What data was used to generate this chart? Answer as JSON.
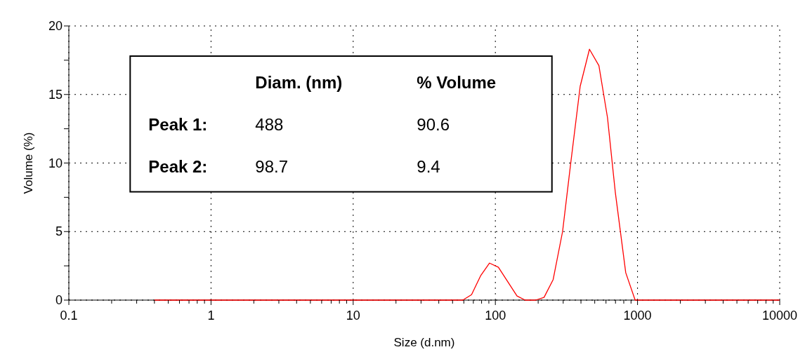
{
  "chart_data": {
    "type": "line",
    "xlabel": "Size (d.nm)",
    "ylabel": "Volume (%)",
    "log": "x",
    "xlim": [
      0.1,
      10000
    ],
    "ylim": [
      0,
      20
    ],
    "xticks": [
      {
        "value": 0.1,
        "label": "0.1"
      },
      {
        "value": 0.2,
        "label": null
      },
      {
        "value": 0.3,
        "label": null
      },
      {
        "value": 0.4,
        "label": null
      },
      {
        "value": 0.5,
        "label": null
      },
      {
        "value": 0.6,
        "label": null
      },
      {
        "value": 0.7,
        "label": null
      },
      {
        "value": 0.8,
        "label": null
      },
      {
        "value": 0.9,
        "label": null
      },
      1,
      {
        "value": 2,
        "label": null
      },
      {
        "value": 3,
        "label": null
      },
      {
        "value": 4,
        "label": null
      },
      {
        "value": 5,
        "label": null
      },
      {
        "value": 6,
        "label": null
      },
      {
        "value": 7,
        "label": null
      },
      {
        "value": 8,
        "label": null
      },
      {
        "value": 9,
        "label": null
      },
      10,
      {
        "value": 20,
        "label": null
      },
      {
        "value": 30,
        "label": null
      },
      {
        "value": 40,
        "label": null
      },
      {
        "value": 50,
        "label": null
      },
      {
        "value": 60,
        "label": null
      },
      {
        "value": 70,
        "label": null
      },
      {
        "value": 80,
        "label": null
      },
      {
        "value": 90,
        "label": null
      },
      100,
      {
        "value": 200,
        "label": null
      },
      {
        "value": 300,
        "label": null
      },
      {
        "value": 400,
        "label": null
      },
      {
        "value": 500,
        "label": null
      },
      {
        "value": 600,
        "label": null
      },
      {
        "value": 700,
        "label": null
      },
      {
        "value": 800,
        "label": null
      },
      {
        "value": 900,
        "label": null
      },
      1000,
      {
        "value": 2000,
        "label": null
      },
      {
        "value": 3000,
        "label": null
      },
      {
        "value": 4000,
        "label": null
      },
      {
        "value": 5000,
        "label": null
      },
      {
        "value": 6000,
        "label": null
      },
      {
        "value": 7000,
        "label": null
      },
      {
        "value": 8000,
        "label": null
      },
      {
        "value": 9000,
        "label": null
      },
      10000
    ],
    "yticks": [
      0,
      {
        "value": 2.5,
        "label": null
      },
      5,
      {
        "value": 7.5,
        "label": null
      },
      10,
      {
        "value": 12.5,
        "label": null
      },
      15,
      {
        "value": 17.5,
        "label": null
      },
      20
    ],
    "grid": true,
    "marker": "none",
    "line_style": "solid",
    "annotations": [
      "Diam. (nm)",
      "% Volume",
      "Peak 1:",
      "488",
      "90.6",
      "Peak 2:",
      "98.7",
      "9.4"
    ],
    "series": [
      {
        "color": "#ff0000",
        "x": [
          0.4,
          1,
          10,
          59,
          68,
          79,
          91,
          105,
          123,
          142,
          162,
          192,
          220,
          255,
          297,
          339,
          395,
          459,
          535,
          615,
          697,
          826,
          962,
          2000,
          5000,
          10000
        ],
        "values": [
          0,
          0,
          0,
          0,
          0.4,
          1.8,
          2.7,
          2.4,
          1.3,
          0.3,
          0,
          0,
          0.2,
          1.5,
          5,
          10,
          15.6,
          18.3,
          17.1,
          13.3,
          7.9,
          2,
          0,
          0,
          0,
          0
        ]
      }
    ]
  }
}
